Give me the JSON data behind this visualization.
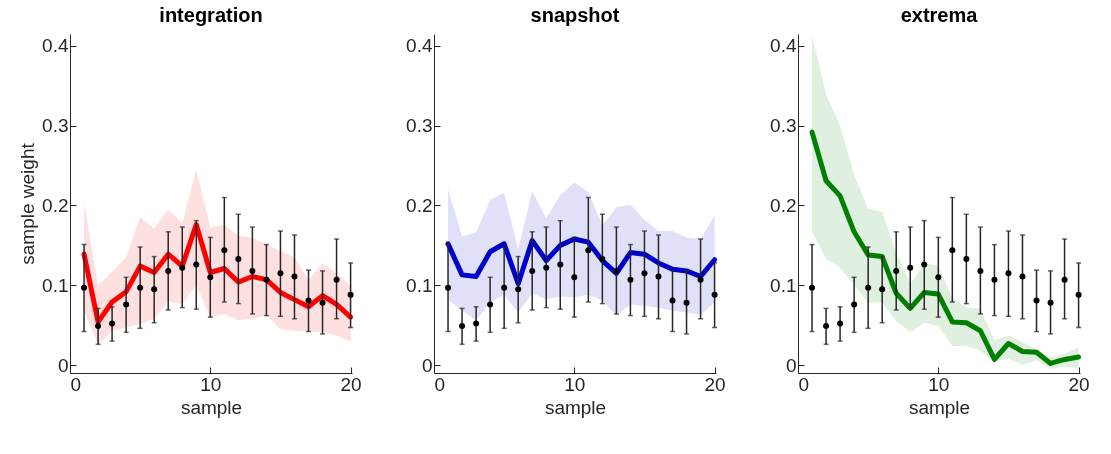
{
  "chart_data": [
    {
      "type": "line",
      "title": "integration",
      "xlabel": "sample",
      "ylabel": "sample weight",
      "x": [
        1,
        2,
        3,
        4,
        5,
        6,
        7,
        8,
        9,
        10,
        11,
        12,
        13,
        14,
        15,
        16,
        17,
        18,
        19,
        20
      ],
      "xlim": [
        0,
        20.1
      ],
      "xticks": [
        0,
        10,
        20
      ],
      "ylim": [
        -0.01,
        0.415
      ],
      "yticks": [
        0,
        0.1,
        0.2,
        0.3,
        0.4
      ],
      "marker": "circle",
      "series": [
        {
          "marker": "none",
          "color": "#ff0000",
          "values": [
            0.139,
            0.054,
            0.079,
            0.092,
            0.124,
            0.116,
            0.139,
            0.124,
            0.176,
            0.116,
            0.121,
            0.104,
            0.111,
            0.107,
            0.091,
            0.082,
            0.073,
            0.087,
            0.076,
            0.06
          ],
          "upper": [
            0.204,
            0.1,
            0.117,
            0.135,
            0.186,
            0.171,
            0.195,
            0.178,
            0.245,
            0.172,
            0.176,
            0.162,
            0.16,
            0.151,
            0.143,
            0.135,
            0.107,
            0.128,
            0.115,
            0.1
          ],
          "lower": [
            0.068,
            0.025,
            0.043,
            0.047,
            0.051,
            0.058,
            0.08,
            0.076,
            0.1,
            0.06,
            0.064,
            0.056,
            0.058,
            0.062,
            0.045,
            0.043,
            0.042,
            0.041,
            0.037,
            0.029
          ]
        },
        {
          "type": "scatter",
          "color": "#000000",
          "values": [
            0.097,
            0.049,
            0.052,
            0.076,
            0.097,
            0.095,
            0.118,
            0.122,
            0.126,
            0.11,
            0.144,
            0.133,
            0.118,
            0.107,
            0.115,
            0.111,
            0.081,
            0.078,
            0.107,
            0.088
          ],
          "errors": [
            [
              0.042,
              0.151
            ],
            [
              0.026,
              0.071
            ],
            [
              0.03,
              0.073
            ],
            [
              0.041,
              0.11
            ],
            [
              0.046,
              0.148
            ],
            [
              0.053,
              0.136
            ],
            [
              0.069,
              0.167
            ],
            [
              0.072,
              0.173
            ],
            [
              0.07,
              0.181
            ],
            [
              0.06,
              0.16
            ],
            [
              0.079,
              0.21
            ],
            [
              0.077,
              0.189
            ],
            [
              0.064,
              0.173
            ],
            [
              0.062,
              0.151
            ],
            [
              0.061,
              0.168
            ],
            [
              0.058,
              0.163
            ],
            [
              0.042,
              0.119
            ],
            [
              0.039,
              0.118
            ],
            [
              0.058,
              0.158
            ],
            [
              0.047,
              0.128
            ]
          ]
        }
      ]
    },
    {
      "type": "line",
      "title": "snapshot",
      "xlabel": "sample",
      "x": [
        1,
        2,
        3,
        4,
        5,
        6,
        7,
        8,
        9,
        10,
        11,
        12,
        13,
        14,
        15,
        16,
        17,
        18,
        19,
        20
      ],
      "xlim": [
        0,
        20.1
      ],
      "xticks": [
        0,
        10,
        20
      ],
      "ylim": [
        -0.01,
        0.415
      ],
      "yticks": [
        0,
        0.1,
        0.2,
        0.3,
        0.4
      ],
      "marker": "circle",
      "series": [
        {
          "marker": "none",
          "color": "#0000cc",
          "values": [
            0.152,
            0.113,
            0.111,
            0.142,
            0.152,
            0.102,
            0.156,
            0.131,
            0.15,
            0.158,
            0.154,
            0.131,
            0.115,
            0.141,
            0.139,
            0.128,
            0.12,
            0.118,
            0.111,
            0.132
          ],
          "upper": [
            0.22,
            0.161,
            0.166,
            0.207,
            0.216,
            0.145,
            0.218,
            0.184,
            0.213,
            0.229,
            0.217,
            0.175,
            0.198,
            0.201,
            0.182,
            0.168,
            0.168,
            0.16,
            0.158,
            0.187
          ],
          "lower": [
            0.082,
            0.068,
            0.056,
            0.078,
            0.088,
            0.066,
            0.09,
            0.082,
            0.086,
            0.085,
            0.088,
            0.081,
            0.062,
            0.076,
            0.074,
            0.072,
            0.068,
            0.066,
            0.063,
            0.078
          ]
        },
        {
          "type": "scatter",
          "color": "#000000",
          "values": [
            0.097,
            0.049,
            0.052,
            0.076,
            0.097,
            0.095,
            0.118,
            0.122,
            0.126,
            0.11,
            0.144,
            0.133,
            0.118,
            0.107,
            0.115,
            0.111,
            0.081,
            0.078,
            0.107,
            0.088
          ],
          "errors": [
            [
              0.042,
              0.151
            ],
            [
              0.026,
              0.071
            ],
            [
              0.03,
              0.073
            ],
            [
              0.041,
              0.11
            ],
            [
              0.046,
              0.148
            ],
            [
              0.053,
              0.136
            ],
            [
              0.069,
              0.167
            ],
            [
              0.072,
              0.173
            ],
            [
              0.07,
              0.181
            ],
            [
              0.06,
              0.16
            ],
            [
              0.079,
              0.21
            ],
            [
              0.077,
              0.189
            ],
            [
              0.064,
              0.173
            ],
            [
              0.062,
              0.151
            ],
            [
              0.061,
              0.168
            ],
            [
              0.058,
              0.163
            ],
            [
              0.042,
              0.119
            ],
            [
              0.039,
              0.118
            ],
            [
              0.058,
              0.158
            ],
            [
              0.047,
              0.128
            ]
          ]
        }
      ]
    },
    {
      "type": "line",
      "title": "extrema",
      "xlabel": "sample",
      "x": [
        1,
        2,
        3,
        4,
        5,
        6,
        7,
        8,
        9,
        10,
        11,
        12,
        13,
        14,
        15,
        16,
        17,
        18,
        19,
        20
      ],
      "xlim": [
        0,
        20.1
      ],
      "xticks": [
        0,
        10,
        20
      ],
      "ylim": [
        -0.01,
        0.415
      ],
      "yticks": [
        0,
        0.1,
        0.2,
        0.3,
        0.4
      ],
      "marker": "circle",
      "series": [
        {
          "marker": "none",
          "color": "#008000",
          "values": [
            0.292,
            0.231,
            0.212,
            0.167,
            0.138,
            0.136,
            0.09,
            0.071,
            0.091,
            0.089,
            0.054,
            0.053,
            0.043,
            0.007,
            0.027,
            0.017,
            0.016,
            0.002,
            0.007,
            0.01
          ],
          "upper": [
            0.414,
            0.339,
            0.3,
            0.239,
            0.196,
            0.192,
            0.141,
            0.102,
            0.127,
            0.125,
            0.084,
            0.072,
            0.071,
            0.031,
            0.037,
            0.029,
            0.019,
            0.01,
            0.014,
            0.022
          ],
          "lower": [
            0.167,
            0.133,
            0.122,
            0.1,
            0.078,
            0.078,
            0.055,
            0.041,
            0.053,
            0.049,
            0.024,
            0.024,
            0.018,
            0.004,
            0.008,
            0.0,
            0.006,
            -0.005,
            -0.002,
            -0.004
          ]
        },
        {
          "type": "scatter",
          "color": "#000000",
          "values": [
            0.097,
            0.049,
            0.052,
            0.076,
            0.097,
            0.095,
            0.118,
            0.122,
            0.126,
            0.11,
            0.144,
            0.133,
            0.118,
            0.107,
            0.115,
            0.111,
            0.081,
            0.078,
            0.107,
            0.088
          ],
          "errors": [
            [
              0.042,
              0.151
            ],
            [
              0.026,
              0.071
            ],
            [
              0.03,
              0.073
            ],
            [
              0.041,
              0.11
            ],
            [
              0.046,
              0.148
            ],
            [
              0.053,
              0.136
            ],
            [
              0.069,
              0.167
            ],
            [
              0.072,
              0.173
            ],
            [
              0.07,
              0.181
            ],
            [
              0.06,
              0.16
            ],
            [
              0.079,
              0.21
            ],
            [
              0.077,
              0.189
            ],
            [
              0.064,
              0.173
            ],
            [
              0.062,
              0.151
            ],
            [
              0.061,
              0.168
            ],
            [
              0.058,
              0.163
            ],
            [
              0.042,
              0.119
            ],
            [
              0.039,
              0.118
            ],
            [
              0.058,
              0.158
            ],
            [
              0.047,
              0.128
            ]
          ]
        }
      ]
    }
  ]
}
